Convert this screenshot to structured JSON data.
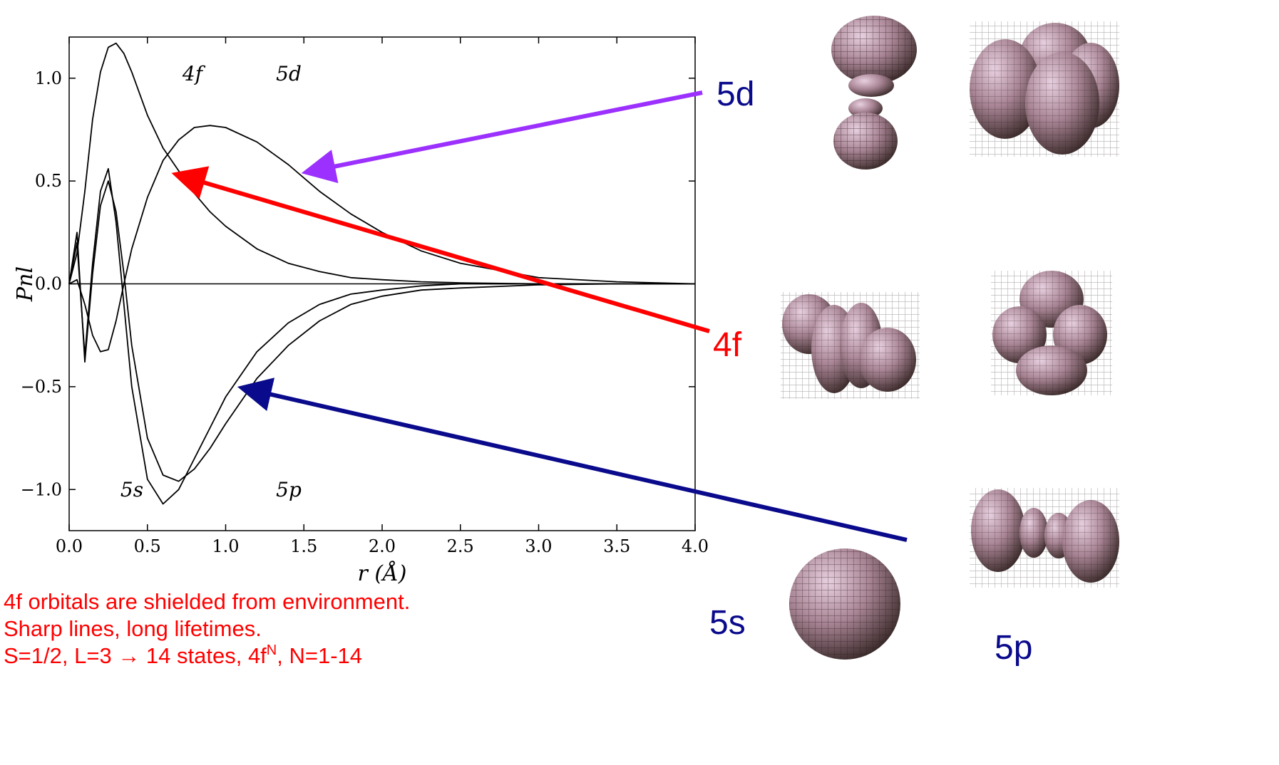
{
  "chart_data": {
    "type": "line",
    "xlabel": "r (Å)",
    "ylabel": "Pnl",
    "x": [
      0,
      0.05,
      0.1,
      0.15,
      0.2,
      0.25,
      0.3,
      0.35,
      0.4,
      0.5,
      0.6,
      0.7,
      0.8,
      0.9,
      1.0,
      1.2,
      1.4,
      1.6,
      1.8,
      2.0,
      2.25,
      2.5,
      3.0,
      3.5,
      4.0
    ],
    "series": [
      {
        "name": "4f",
        "color": "#000000",
        "values": [
          0,
          0.15,
          0.45,
          0.8,
          1.03,
          1.15,
          1.17,
          1.12,
          1.03,
          0.82,
          0.66,
          0.55,
          0.44,
          0.35,
          0.28,
          0.17,
          0.1,
          0.06,
          0.03,
          0.02,
          0.01,
          0.005,
          0,
          0,
          0
        ]
      },
      {
        "name": "5d",
        "color": "#000000",
        "values": [
          0,
          0.02,
          -0.1,
          -0.25,
          -0.33,
          -0.32,
          -0.18,
          0,
          0.17,
          0.42,
          0.6,
          0.7,
          0.76,
          0.77,
          0.76,
          0.69,
          0.58,
          0.45,
          0.34,
          0.25,
          0.16,
          0.1,
          0.03,
          0.01,
          0
        ]
      },
      {
        "name": "5s",
        "color": "#000000",
        "values": [
          0,
          0.2,
          -0.35,
          0.1,
          0.45,
          0.56,
          0.3,
          -0.1,
          -0.5,
          -0.95,
          -1.07,
          -1.0,
          -0.85,
          -0.7,
          -0.55,
          -0.33,
          -0.19,
          -0.1,
          -0.05,
          -0.03,
          -0.01,
          0,
          0,
          0,
          0
        ]
      },
      {
        "name": "5p",
        "color": "#000000",
        "values": [
          0,
          0.25,
          -0.38,
          0.05,
          0.38,
          0.5,
          0.35,
          0.05,
          -0.3,
          -0.75,
          -0.93,
          -0.96,
          -0.9,
          -0.8,
          -0.68,
          -0.46,
          -0.3,
          -0.18,
          -0.1,
          -0.06,
          -0.03,
          -0.02,
          -0.005,
          0,
          0
        ]
      }
    ],
    "xlim": [
      0,
      4
    ],
    "ylim": [
      -1.2,
      1.2
    ],
    "xticks": [
      {
        "value": 0,
        "label": "0.0"
      },
      {
        "value": 0.5,
        "label": "0.5"
      },
      {
        "value": 1,
        "label": "1.0"
      },
      {
        "value": 1.5,
        "label": "1.5"
      },
      {
        "value": 2,
        "label": "2.0"
      },
      {
        "value": 2.5,
        "label": "2.5"
      },
      {
        "value": 3,
        "label": "3.0"
      },
      {
        "value": 3.5,
        "label": "3.5"
      },
      {
        "value": 4,
        "label": "4.0"
      }
    ],
    "yticks": [
      {
        "value": -1,
        "label": "−1.0"
      },
      {
        "value": -0.5,
        "label": "−0.5"
      },
      {
        "value": 0,
        "label": "0.0"
      },
      {
        "value": 0.5,
        "label": "0.5"
      },
      {
        "value": 1,
        "label": "1.0"
      }
    ],
    "grid": false
  },
  "slide": {
    "labels": [
      "5d",
      "4f",
      "5s",
      "5p"
    ],
    "notes": [
      "4f orbitals are shielded from environment.",
      "Sharp lines, long lifetimes."
    ],
    "last_note": {
      "text": "S=1/2, L=3 → 14 states, 4f",
      "sup": "N",
      "after": ", N=1-14"
    }
  }
}
